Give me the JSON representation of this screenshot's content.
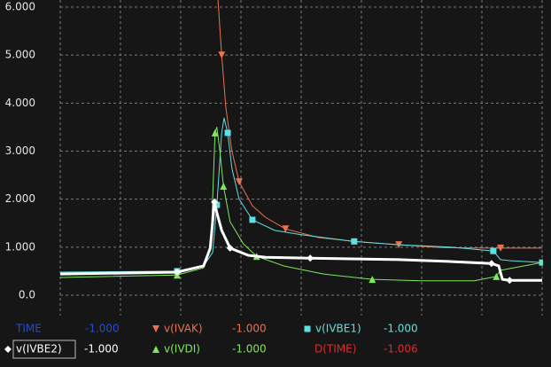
{
  "chart_data": {
    "type": "line",
    "background": "#161616",
    "grid": true,
    "grid_color": "#7a7a7a",
    "axis_label_color": "#e6e6e6",
    "xlim": [
      0,
      8
    ],
    "xticks": [
      0,
      1,
      2,
      3,
      4,
      5,
      6,
      7,
      8
    ],
    "ylim": [
      0,
      6
    ],
    "yticks": [
      {
        "value": 0,
        "label": "0.0"
      },
      {
        "value": 1,
        "label": "1.000"
      },
      {
        "value": 2,
        "label": "2.000"
      },
      {
        "value": 3,
        "label": "3.000"
      },
      {
        "value": 4,
        "label": "4.000"
      },
      {
        "value": 5,
        "label": "5.000"
      },
      {
        "value": 6,
        "label": "6.000"
      }
    ],
    "series": [
      {
        "name": "v(IVAK)",
        "color": "#e8734e",
        "marker": "triangle-down",
        "width": 1,
        "readout": "-1.000",
        "x": [
          2.6,
          2.68,
          2.75,
          2.85,
          2.97,
          3.19,
          3.41,
          3.74,
          4.29,
          4.88,
          5.62,
          6.35,
          7.19,
          7.31,
          8
        ],
        "values": [
          6.5,
          5.0,
          3.9,
          3.0,
          2.36,
          1.86,
          1.62,
          1.38,
          1.2,
          1.12,
          1.05,
          0.99,
          0.98,
          0.98,
          0.98
        ]
      },
      {
        "name": "v(IVBE1)",
        "color": "#5fe0e0",
        "marker": "square",
        "width": 1,
        "readout": "-1.000",
        "x": [
          0,
          1.94,
          2.38,
          2.53,
          2.6,
          2.68,
          2.72,
          2.78,
          2.85,
          2.97,
          3.19,
          3.56,
          4.0,
          4.88,
          5.62,
          6.5,
          7.19,
          7.31,
          7.46,
          8
        ],
        "values": [
          0.48,
          0.5,
          0.61,
          0.89,
          1.88,
          3.38,
          3.69,
          3.38,
          2.64,
          2.0,
          1.57,
          1.35,
          1.26,
          1.12,
          1.05,
          1.0,
          0.92,
          0.74,
          0.72,
          0.68
        ]
      },
      {
        "name": "v(IVDI)",
        "color": "#7ee85a",
        "marker": "triangle-up",
        "width": 1,
        "readout": "-1.000",
        "x": [
          0,
          1.94,
          2.38,
          2.5,
          2.57,
          2.6,
          2.65,
          2.71,
          2.82,
          3.04,
          3.26,
          3.71,
          4.37,
          5.18,
          5.99,
          6.87,
          7.24,
          7.31,
          8
        ],
        "values": [
          0.37,
          0.42,
          0.57,
          0.98,
          3.38,
          3.5,
          3.0,
          2.27,
          1.53,
          1.07,
          0.81,
          0.61,
          0.44,
          0.33,
          0.3,
          0.3,
          0.39,
          0.52,
          0.68
        ]
      },
      {
        "name": "v(IVBE2)",
        "color": "#ffffff",
        "marker": "diamond",
        "width": 3,
        "readout": "-1.000",
        "x": [
          0,
          1.94,
          2.38,
          2.49,
          2.56,
          2.6,
          2.68,
          2.82,
          3.12,
          3.41,
          4.15,
          5.62,
          6.5,
          7.16,
          7.28,
          7.34,
          7.46,
          8
        ],
        "values": [
          0.44,
          0.48,
          0.61,
          0.98,
          1.94,
          1.72,
          1.35,
          0.98,
          0.83,
          0.79,
          0.77,
          0.74,
          0.7,
          0.66,
          0.61,
          0.33,
          0.31,
          0.31
        ]
      }
    ],
    "readouts": [
      {
        "label": "TIME",
        "color": "#2a4bd6",
        "value": "-1.000"
      },
      {
        "label": "D(TIME)",
        "color": "#e02a2a",
        "value": "-1.006"
      }
    ]
  }
}
